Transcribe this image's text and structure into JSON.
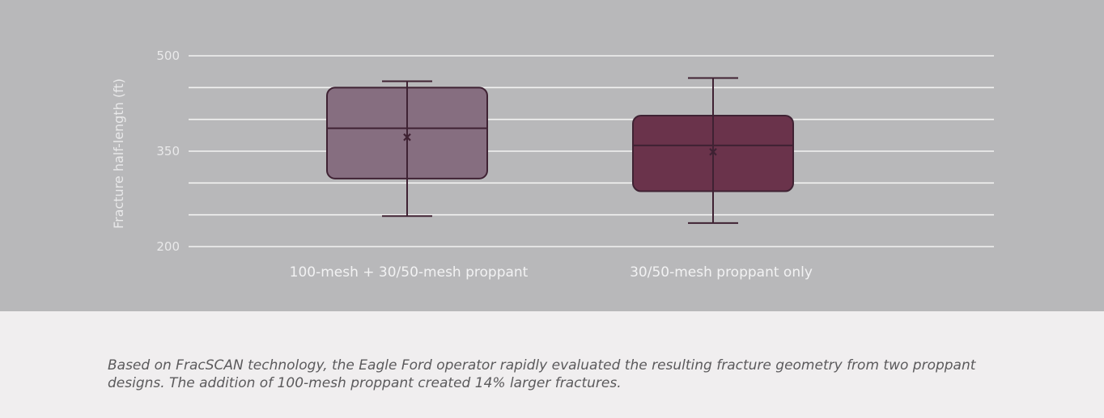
{
  "chart_data": {
    "type": "box",
    "ylabel": "Fracture half-length (ft)",
    "ylim": [
      200,
      500
    ],
    "yticks": [
      200,
      350,
      500
    ],
    "grid": true,
    "categories": [
      "100-mesh + 30/50-mesh proppant",
      "30/50-mesh proppant only"
    ],
    "boxes": [
      {
        "category": "100-mesh + 30/50-mesh proppant",
        "min": 248,
        "q1": 307,
        "median": 386,
        "q3": 450,
        "max": 460,
        "mean": 372,
        "color": "#866e80"
      },
      {
        "category": "30/50-mesh proppant only",
        "min": 237,
        "q1": 287,
        "median": 359,
        "q3": 406,
        "max": 465,
        "mean": 349,
        "color": "#6a334b"
      }
    ]
  },
  "caption": "Based on FracSCAN technology, the Eagle Ford operator rapidly evaluated the resulting fracture geometry from two proppant designs. The addition of 100-mesh proppant created 14% larger fractures.",
  "colors": {
    "panel_background": "#b8b8ba",
    "caption_background": "#f0eeef",
    "gridline": "#f2f2f2",
    "box_outline": "#3f2233"
  }
}
